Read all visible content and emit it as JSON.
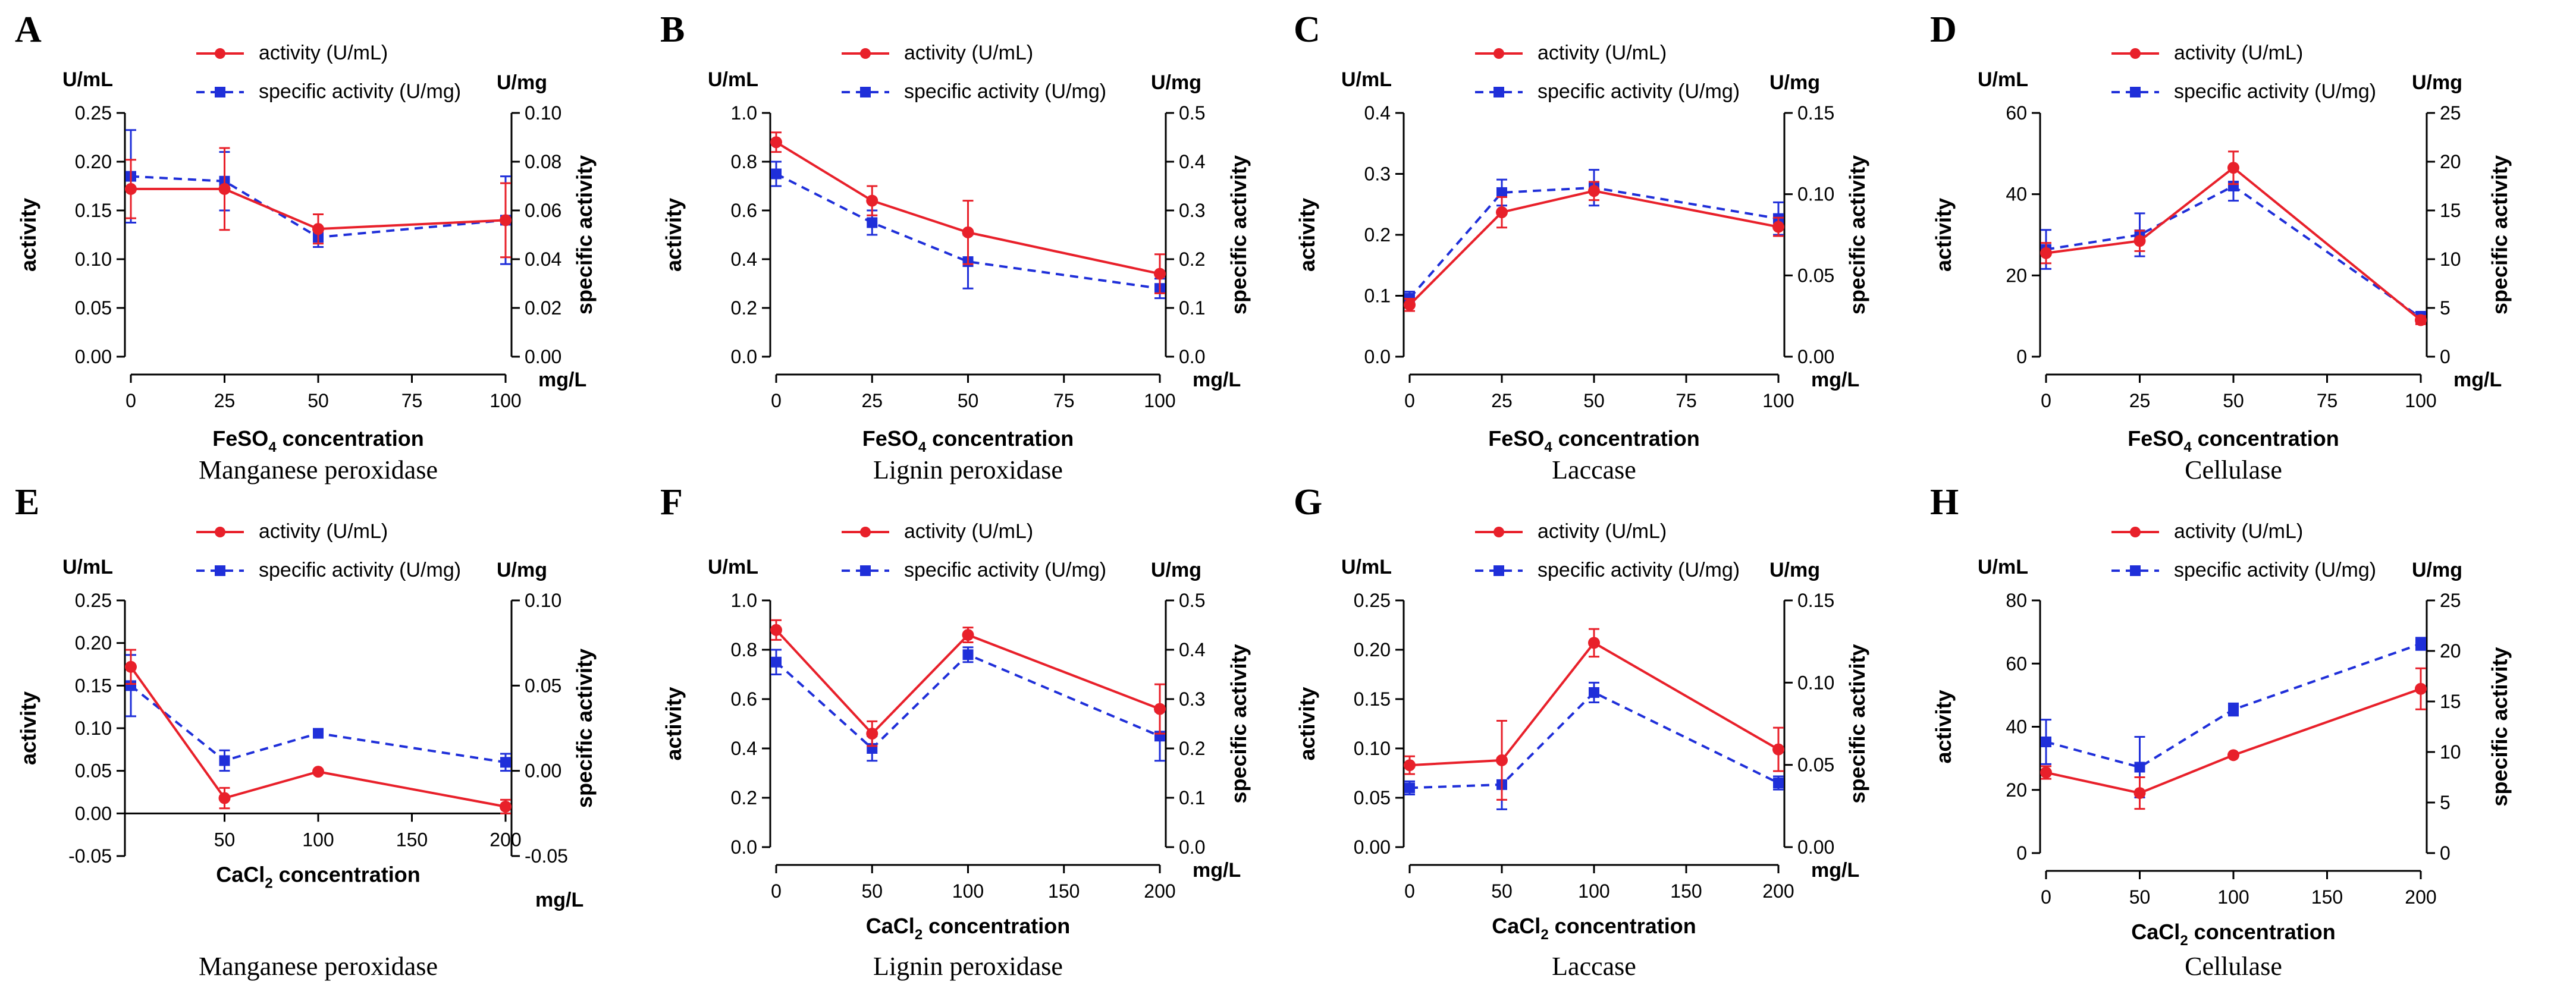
{
  "colors": {
    "activity": "#e8202a",
    "specific": "#1f2fd9",
    "axis": "#000000"
  },
  "legend": {
    "activity": "activity (U/mL)",
    "specific": "specific activity (U/mg)"
  },
  "chart_data": [
    {
      "type": "line",
      "panel": "A",
      "enzyme": "Manganese peroxidase",
      "x_title": "FeSO4 concentration",
      "x_title_main": "FeSO",
      "x_title_sub": "4",
      "x_title_rest": " concentration",
      "x_unit": "mg/L",
      "left_unit": "U/mL",
      "right_unit": "U/mg",
      "ylabel_left": "activity",
      "ylabel_right": "specific activity",
      "x": [
        0,
        25,
        50,
        100
      ],
      "xlim": [
        0,
        100
      ],
      "xticks": [
        "0",
        "25",
        "50",
        "75",
        "100"
      ],
      "xtick_values": [
        0,
        25,
        50,
        75,
        100
      ],
      "ylim_left": [
        0,
        0.25
      ],
      "yticks_left": [
        "0.00",
        "0.05",
        "0.10",
        "0.15",
        "0.20",
        "0.25"
      ],
      "ylim_right": [
        0,
        0.1
      ],
      "yticks_right": [
        "0.00",
        "0.02",
        "0.04",
        "0.06",
        "0.08",
        "0.10"
      ],
      "series": [
        {
          "name": "activity (U/mL)",
          "axis": "left",
          "values": [
            0.172,
            0.172,
            0.131,
            0.14
          ],
          "errors": [
            0.03,
            0.042,
            0.015,
            0.038
          ]
        },
        {
          "name": "specific activity (U/mg)",
          "axis": "right",
          "values": [
            0.074,
            0.072,
            0.049,
            0.056
          ],
          "errors": [
            0.019,
            0.012,
            0.004,
            0.018
          ]
        }
      ]
    },
    {
      "type": "line",
      "panel": "B",
      "enzyme": "Lignin peroxidase",
      "x_title": "FeSO4 concentration",
      "x_title_main": "FeSO",
      "x_title_sub": "4",
      "x_title_rest": " concentration",
      "x_unit": "mg/L",
      "left_unit": "U/mL",
      "right_unit": "U/mg",
      "ylabel_left": "activity",
      "ylabel_right": "specific activity",
      "x": [
        0,
        25,
        50,
        100
      ],
      "xlim": [
        0,
        100
      ],
      "xticks": [
        "0",
        "25",
        "50",
        "75",
        "100"
      ],
      "xtick_values": [
        0,
        25,
        50,
        75,
        100
      ],
      "ylim_left": [
        0,
        1.0
      ],
      "yticks_left": [
        "0.0",
        "0.2",
        "0.4",
        "0.6",
        "0.8",
        "1.0"
      ],
      "ylim_right": [
        0,
        0.5
      ],
      "yticks_right": [
        "0.0",
        "0.1",
        "0.2",
        "0.3",
        "0.4",
        "0.5"
      ],
      "series": [
        {
          "name": "activity (U/mL)",
          "axis": "left",
          "values": [
            0.88,
            0.64,
            0.51,
            0.34
          ],
          "errors": [
            0.04,
            0.06,
            0.13,
            0.08
          ]
        },
        {
          "name": "specific activity (U/mg)",
          "axis": "right",
          "values": [
            0.375,
            0.275,
            0.195,
            0.14
          ],
          "errors": [
            0.025,
            0.025,
            0.055,
            0.02
          ]
        }
      ]
    },
    {
      "type": "line",
      "panel": "C",
      "enzyme": "Laccase",
      "x_title": "FeSO4 concentration",
      "x_title_main": "FeSO",
      "x_title_sub": "4",
      "x_title_rest": " concentration",
      "x_unit": "mg/L",
      "left_unit": "U/mL",
      "right_unit": "U/mg",
      "ylabel_left": "activity",
      "ylabel_right": "specific activity",
      "x": [
        0,
        25,
        50,
        100
      ],
      "xlim": [
        0,
        100
      ],
      "xticks": [
        "0",
        "25",
        "50",
        "75",
        "100"
      ],
      "xtick_values": [
        0,
        25,
        50,
        75,
        100
      ],
      "ylim_left": [
        0,
        0.4
      ],
      "yticks_left": [
        "0.0",
        "0.1",
        "0.2",
        "0.3",
        "0.4"
      ],
      "ylim_right": [
        0,
        0.15
      ],
      "yticks_right": [
        "0.00",
        "0.05",
        "0.10",
        "0.15"
      ],
      "series": [
        {
          "name": "activity (U/mL)",
          "axis": "left",
          "values": [
            0.085,
            0.237,
            0.272,
            0.213
          ],
          "errors": [
            0.01,
            0.025,
            0.015,
            0.015
          ]
        },
        {
          "name": "specific activity (U/mg)",
          "axis": "right",
          "values": [
            0.036,
            0.101,
            0.104,
            0.085
          ],
          "errors": [
            0.004,
            0.008,
            0.011,
            0.01
          ]
        }
      ]
    },
    {
      "type": "line",
      "panel": "D",
      "enzyme": "Cellulase",
      "x_title": "FeSO4 concentration",
      "x_title_main": "FeSO",
      "x_title_sub": "4",
      "x_title_rest": " concentration",
      "x_unit": "mg/L",
      "left_unit": "U/mL",
      "right_unit": "U/mg",
      "ylabel_left": "activity",
      "ylabel_right": "specific activity",
      "x": [
        0,
        25,
        50,
        100
      ],
      "xlim": [
        0,
        100
      ],
      "xticks": [
        "0",
        "25",
        "50",
        "75",
        "100"
      ],
      "xtick_values": [
        0,
        25,
        50,
        75,
        100
      ],
      "ylim_left": [
        0,
        60
      ],
      "yticks_left": [
        "0",
        "20",
        "40",
        "60"
      ],
      "ylim_right": [
        0,
        25
      ],
      "yticks_right": [
        "0",
        "5",
        "10",
        "15",
        "20",
        "25"
      ],
      "series": [
        {
          "name": "activity (U/mL)",
          "axis": "left",
          "values": [
            25.5,
            28.5,
            46.5,
            9.0
          ],
          "errors": [
            2.5,
            2.5,
            4.0,
            1.0
          ]
        },
        {
          "name": "specific activity (U/mg)",
          "axis": "right",
          "values": [
            11.0,
            12.5,
            17.5,
            4.0
          ],
          "errors": [
            2.0,
            2.2,
            1.5,
            0.6
          ]
        }
      ]
    },
    {
      "type": "line",
      "panel": "E",
      "enzyme": "Manganese peroxidase",
      "x_title": "CaCl2 concentration",
      "x_title_main": "CaCl",
      "x_title_sub": "2",
      "x_title_rest": " concentration",
      "x_unit": "mg/L",
      "left_unit": "U/mL",
      "right_unit": "U/mg",
      "ylabel_left": "activity",
      "ylabel_right": "specific activity",
      "x": [
        0,
        50,
        100,
        200
      ],
      "xlim": [
        0,
        200
      ],
      "xticks": [
        "50",
        "100",
        "150",
        "200"
      ],
      "xtick_values": [
        50,
        100,
        150,
        200
      ],
      "ylim_left": [
        -0.05,
        0.25
      ],
      "yticks_left": [
        "-0.05",
        "0.00",
        "0.05",
        "0.10",
        "0.15",
        "0.20",
        "0.25"
      ],
      "ylim_right": [
        -0.05,
        0.1
      ],
      "yticks_right": [
        "-0.05",
        "0.00",
        "0.05",
        "0.10"
      ],
      "series": [
        {
          "name": "activity (U/mL)",
          "axis": "left",
          "values": [
            0.172,
            0.018,
            0.049,
            0.008
          ],
          "errors": [
            0.02,
            0.012,
            0.002,
            0.008
          ]
        },
        {
          "name": "specific activity (U/mg)",
          "axis": "right",
          "values": [
            0.05,
            0.006,
            0.022,
            0.005
          ],
          "errors": [
            0.018,
            0.006,
            0.002,
            0.005
          ]
        }
      ]
    },
    {
      "type": "line",
      "panel": "F",
      "enzyme": "Lignin peroxidase",
      "x_title": "CaCl2 concentration",
      "x_title_main": "CaCl",
      "x_title_sub": "2",
      "x_title_rest": " concentration",
      "x_unit": "mg/L",
      "left_unit": "U/mL",
      "right_unit": "U/mg",
      "ylabel_left": "activity",
      "ylabel_right": "specific activity",
      "x": [
        0,
        50,
        100,
        200
      ],
      "xlim": [
        0,
        200
      ],
      "xticks": [
        "0",
        "50",
        "100",
        "150",
        "200"
      ],
      "xtick_values": [
        0,
        50,
        100,
        150,
        200
      ],
      "ylim_left": [
        0,
        1.0
      ],
      "yticks_left": [
        "0.0",
        "0.2",
        "0.4",
        "0.6",
        "0.8",
        "1.0"
      ],
      "ylim_right": [
        0,
        0.5
      ],
      "yticks_right": [
        "0.0",
        "0.1",
        "0.2",
        "0.3",
        "0.4",
        "0.5"
      ],
      "series": [
        {
          "name": "activity (U/mL)",
          "axis": "left",
          "values": [
            0.88,
            0.46,
            0.86,
            0.56
          ],
          "errors": [
            0.04,
            0.05,
            0.03,
            0.1
          ]
        },
        {
          "name": "specific activity (U/mg)",
          "axis": "right",
          "values": [
            0.375,
            0.2,
            0.39,
            0.225
          ],
          "errors": [
            0.025,
            0.025,
            0.015,
            0.05
          ]
        }
      ]
    },
    {
      "type": "line",
      "panel": "G",
      "enzyme": "Laccase",
      "x_title": "CaCl2 concentration",
      "x_title_main": "CaCl",
      "x_title_sub": "2",
      "x_title_rest": " concentration",
      "x_unit": "mg/L",
      "left_unit": "U/mL",
      "right_unit": "U/mg",
      "ylabel_left": "activity",
      "ylabel_right": "specific activity",
      "x": [
        0,
        50,
        100,
        200
      ],
      "xlim": [
        0,
        200
      ],
      "xticks": [
        "0",
        "50",
        "100",
        "150",
        "200"
      ],
      "xtick_values": [
        0,
        50,
        100,
        150,
        200
      ],
      "ylim_left": [
        0,
        0.25
      ],
      "yticks_left": [
        "0.00",
        "0.05",
        "0.10",
        "0.15",
        "0.20",
        "0.25"
      ],
      "ylim_right": [
        0,
        0.15
      ],
      "yticks_right": [
        "0.00",
        "0.05",
        "0.10",
        "0.15"
      ],
      "series": [
        {
          "name": "activity (U/mL)",
          "axis": "left",
          "values": [
            0.083,
            0.088,
            0.207,
            0.099
          ],
          "errors": [
            0.009,
            0.04,
            0.014,
            0.022
          ]
        },
        {
          "name": "specific activity (U/mg)",
          "axis": "right",
          "values": [
            0.036,
            0.038,
            0.094,
            0.039
          ],
          "errors": [
            0.004,
            0.015,
            0.006,
            0.004
          ]
        }
      ]
    },
    {
      "type": "line",
      "panel": "H",
      "enzyme": "Cellulase",
      "x_title": "CaCl2 concentration",
      "x_title_main": "CaCl",
      "x_title_sub": "2",
      "x_title_rest": " concentration",
      "x_unit": "",
      "left_unit": "U/mL",
      "right_unit": "U/mg",
      "ylabel_left": "activity",
      "ylabel_right": "specific activity",
      "x": [
        0,
        50,
        100,
        200
      ],
      "xlim": [
        0,
        200
      ],
      "xticks": [
        "0",
        "50",
        "100",
        "150",
        "200"
      ],
      "xtick_values": [
        0,
        50,
        100,
        150,
        200
      ],
      "ylim_left": [
        0,
        80
      ],
      "yticks_left": [
        "0",
        "20",
        "40",
        "60",
        "80"
      ],
      "ylim_right": [
        0,
        25
      ],
      "yticks_right": [
        "0",
        "5",
        "10",
        "15",
        "20",
        "25"
      ],
      "series": [
        {
          "name": "activity (U/mL)",
          "axis": "left",
          "values": [
            25.5,
            19.0,
            31.0,
            52.0
          ],
          "errors": [
            2.0,
            5.0,
            0.5,
            6.5
          ]
        },
        {
          "name": "specific activity (U/mg)",
          "axis": "right",
          "values": [
            11.0,
            8.5,
            14.2,
            20.7
          ],
          "errors": [
            2.2,
            3.0,
            0.6,
            0.6
          ]
        }
      ]
    }
  ]
}
